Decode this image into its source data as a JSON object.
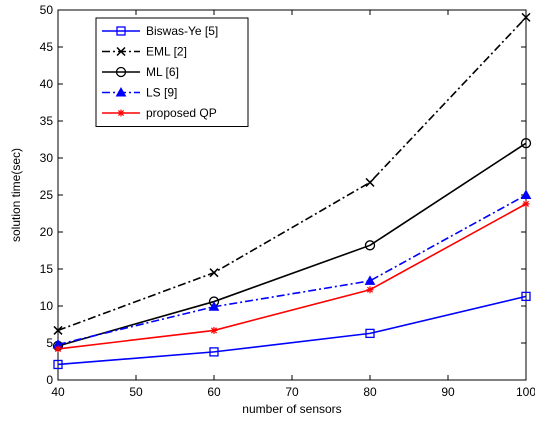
{
  "chart_data": {
    "type": "line",
    "title": "",
    "xlabel": "number of sensors",
    "ylabel": "solution time(sec)",
    "xlim": [
      40,
      100
    ],
    "ylim": [
      0,
      50
    ],
    "x_ticks": [
      "40",
      "50",
      "60",
      "70",
      "80",
      "90",
      "100"
    ],
    "y_ticks": [
      "0",
      "5",
      "10",
      "15",
      "20",
      "25",
      "30",
      "35",
      "40",
      "45",
      "50"
    ],
    "x": [
      40,
      60,
      80,
      100
    ],
    "grid": false,
    "legend_position": "top-left",
    "series": [
      {
        "name": "Biswas-Ye [5]",
        "values": [
          2.1,
          3.8,
          6.3,
          11.3
        ],
        "color": "#0000ff",
        "dash": "solid",
        "marker": "square"
      },
      {
        "name": "EML [2]",
        "values": [
          6.7,
          14.5,
          26.7,
          49.0
        ],
        "color": "#000000",
        "dash": "dashdot",
        "marker": "x"
      },
      {
        "name": "ML [6]",
        "values": [
          4.6,
          10.6,
          18.2,
          32.0
        ],
        "color": "#000000",
        "dash": "solid",
        "marker": "circle"
      },
      {
        "name": "LS [9]",
        "values": [
          4.8,
          9.9,
          13.4,
          25.0
        ],
        "color": "#0000ff",
        "dash": "dashdot",
        "marker": "triangle"
      },
      {
        "name": "proposed QP",
        "values": [
          4.2,
          6.7,
          12.2,
          23.8
        ],
        "color": "#ff0000",
        "dash": "solid",
        "marker": "star"
      }
    ]
  }
}
